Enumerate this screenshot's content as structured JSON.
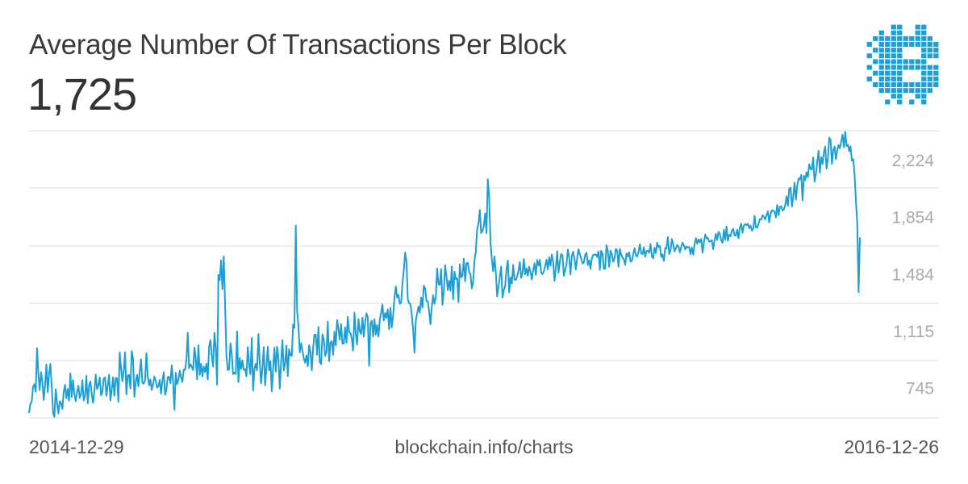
{
  "header": {
    "title": "Average Number Of Transactions Per Block",
    "current_value": "1,725"
  },
  "logo": {
    "icon": "bitcoin-b-pixel-logo-icon",
    "color": "#1a9fd6"
  },
  "footer": {
    "start_date": "2014-12-29",
    "source": "blockchain.info/charts",
    "end_date": "2016-12-26"
  },
  "colors": {
    "line": "#1a9fd6",
    "grid": "#dddddd",
    "tick_text": "#aaaaaa"
  },
  "chart_data": {
    "type": "line",
    "title": "Average Number Of Transactions Per Block",
    "x_range": [
      "2014-12-29",
      "2016-12-26"
    ],
    "yticks": [
      745,
      1115,
      1484,
      1854,
      2224
    ],
    "ytick_labels": [
      "745",
      "1,115",
      "1,484",
      "1,854",
      "2,224"
    ],
    "ylim": [
      555,
      2417
    ],
    "grid": true,
    "series": [
      {
        "values": [
          587,
          647,
          659,
          756,
          773,
          724,
          1006,
          842,
          735,
          851,
          788,
          671,
          768,
          902,
          721,
          837,
          906,
          757,
          589,
          562,
          741,
          656,
          583,
          663,
          649,
          613,
          725,
          769,
          682,
          742,
          667,
          844,
          691,
          800,
          706,
          663,
          724,
          764,
          684,
          708,
          798,
          668,
          697,
          827,
          649,
          764,
          791,
          712,
          652,
          724,
          837,
          741,
          765,
          818,
          701,
          724,
          810,
          818,
          698,
          760,
          834,
          667,
          739,
          818,
          698,
          814,
          812,
          659,
          979,
          872,
          793,
          862,
          980,
          707,
          830,
          834,
          745,
          988,
          938,
          691,
          787,
          834,
          759,
          853,
          934,
          781,
          776,
          801,
          975,
          829,
          766,
          804,
          736,
          774,
          823,
          795,
          751,
          760,
          801,
          712,
          796,
          851,
          705,
          738,
          820,
          821,
          779,
          896,
          789,
          608,
          848,
          773,
          801,
          862,
          815,
          788,
          869,
          866,
          930,
          1107,
          878,
          903,
          887,
          864,
          1010,
          942,
          805,
          1026,
          833,
          907,
          824,
          888,
          851,
          907,
          804,
          1015,
          1059,
          960,
          887,
          1106,
          1011,
          770,
          1483,
          1448,
          1576,
          1390,
          1602,
          1289,
          956,
          864,
          870,
          1039,
          969,
          838,
          848,
          839,
          1115,
          787,
          943,
          872,
          928,
          866,
          872,
          824,
          1014,
          902,
          838,
          1073,
          733,
          872,
          906,
          863,
          1099,
          910,
          778,
          878,
          1014,
          766,
          880,
          1016,
          863,
          922,
          726,
          876,
          1010,
          855,
          1016,
          940,
          745,
          915,
          1059,
          861,
          909,
          1024,
          826,
          1000,
          960,
          957,
          1160,
          1138,
          1802,
          1250,
          1151,
          979,
          1040,
          993,
          942,
          913,
          960,
          889,
          1026,
          983,
          863,
          1008,
          1094,
          1093,
          963,
          1145,
          917,
          904,
          1097,
          1064,
          957,
          978,
          1179,
          923,
          1042,
          1052,
          964,
          1113,
          1024,
          1190,
          1132,
          1061,
          1162,
          1036,
          1037,
          1142,
          1043,
          1210,
          1109,
          1106,
          1070,
          991,
          1237,
          1099,
          1030,
          1196,
          1116,
          1099,
          1205,
          1081,
          1176,
          1233,
          1209,
          892,
          1166,
          1186,
          1082,
          1195,
          1095,
          1158,
          1082,
          1190,
          1240,
          1290,
          1186,
          1235,
          1204,
          1259,
          1130,
          1269,
          1141,
          1220,
          1334,
          1407,
          1335,
          1352,
          1295,
          1301,
          1430,
          1510,
          1627,
          1570,
          1325,
          1296,
          1294,
          1222,
          1128,
          978,
          1186,
          1233,
          1277,
          1237,
          1336,
          1269,
          1412,
          1395,
          1312,
          1311,
          1245,
          1161,
          1275,
          1350,
          1294,
          1337,
          1524,
          1424,
          1416,
          1520,
          1288,
          1376,
          1546,
          1471,
          1383,
          1444,
          1380,
          1537,
          1324,
          1503,
          1454,
          1460,
          1306,
          1550,
          1466,
          1476,
          1587,
          1440,
          1557,
          1561,
          1499,
          1488,
          1394,
          1437,
          1578,
          1631,
          1779,
          1815,
          1903,
          1753,
          1768,
          1798,
          1880,
          1753,
          2102,
          1987,
          1695,
          1584,
          1505,
          1602,
          1496,
          1342,
          1405,
          1471,
          1536,
          1335,
          1382,
          1409,
          1521,
          1575,
          1368,
          1465,
          1425,
          1547,
          1451,
          1449,
          1472,
          1510,
          1565,
          1463,
          1496,
          1585,
          1486,
          1525,
          1477,
          1536,
          1501,
          1452,
          1512,
          1557,
          1482,
          1578,
          1542,
          1580,
          1497,
          1487,
          1505,
          1539,
          1581,
          1517,
          1597,
          1541,
          1614,
          1568,
          1443,
          1525,
          1635,
          1496,
          1566,
          1618,
          1609,
          1476,
          1512,
          1553,
          1646,
          1597,
          1485,
          1606,
          1632,
          1584,
          1517,
          1592,
          1648,
          1616,
          1588,
          1556,
          1562,
          1611,
          1626,
          1546,
          1577,
          1521,
          1589,
          1611,
          1613,
          1615,
          1598,
          1634,
          1515,
          1639,
          1618,
          1521,
          1523,
          1674,
          1637,
          1534,
          1639,
          1617,
          1567,
          1590,
          1651,
          1641,
          1535,
          1651,
          1614,
          1595,
          1582,
          1547,
          1622,
          1601,
          1629,
          1568,
          1573,
          1616,
          1655,
          1606,
          1602,
          1631,
          1681,
          1622,
          1616,
          1660,
          1600,
          1637,
          1638,
          1625,
          1683,
          1602,
          1589,
          1658,
          1623,
          1691,
          1662,
          1670,
          1597,
          1615,
          1572,
          1656,
          1653,
          1727,
          1617,
          1641,
          1715,
          1680,
          1634,
          1654,
          1676,
          1666,
          1628,
          1663,
          1691,
          1674,
          1647,
          1666,
          1659,
          1662,
          1616,
          1659,
          1613,
          1681,
          1720,
          1684,
          1713,
          1693,
          1715,
          1626,
          1689,
          1744,
          1718,
          1722,
          1697,
          1701,
          1707,
          1648,
          1707,
          1748,
          1708,
          1761,
          1746,
          1705,
          1689,
          1774,
          1710,
          1796,
          1703,
          1742,
          1733,
          1768,
          1781,
          1738,
          1737,
          1775,
          1719,
          1788,
          1814,
          1755,
          1801,
          1812,
          1804,
          1814,
          1784,
          1802,
          1769,
          1779,
          1865,
          1791,
          1787,
          1814,
          1843,
          1842,
          1869,
          1860,
          1841,
          1868,
          1894,
          1822,
          1879,
          1901,
          1898,
          1893,
          1855,
          1936,
          1869,
          1924,
          1927,
          1899,
          1907,
          1935,
          1991,
          1930,
          2041,
          2047,
          1926,
          1991,
          2080,
          1969,
          2058,
          2107,
          2101,
          2130,
          1965,
          2125,
          2096,
          2148,
          2115,
          2199,
          2169,
          2165,
          2244,
          2086,
          2136,
          2214,
          2287,
          2144,
          2246,
          2202,
          2278,
          2314,
          2170,
          2233,
          2372,
          2356,
          2201,
          2290,
          2314,
          2232,
          2293,
          2324,
          2302,
          2348,
          2391,
          2310,
          2409,
          2316,
          2327,
          2283,
          2316,
          2222,
          2232,
          2131,
          1963,
          1821,
          1370,
          1725
        ]
      }
    ]
  }
}
